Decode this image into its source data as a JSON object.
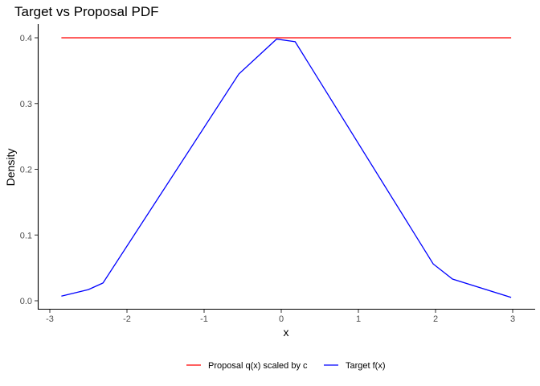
{
  "chart_data": {
    "type": "line",
    "title": "Target vs Proposal PDF",
    "xlabel": "x",
    "ylabel": "Density",
    "xlim": [
      -3.0,
      3.0
    ],
    "ylim": [
      0.0,
      0.4
    ],
    "x_ticks": [
      -3,
      -2,
      -1,
      0,
      1,
      2,
      3
    ],
    "y_ticks": [
      0.0,
      0.1,
      0.2,
      0.3,
      0.4
    ],
    "x_tick_labels": [
      "-3",
      "-2",
      "-1",
      "0",
      "1",
      "2",
      "3"
    ],
    "y_tick_labels": [
      "0.0",
      "0.1",
      "0.2",
      "0.3",
      "0.4"
    ],
    "grid": false,
    "legend_position": "bottom",
    "series": [
      {
        "name": "Proposal q(x) scaled by c",
        "color": "#ff0000",
        "x": [
          -2.85,
          2.98
        ],
        "y": [
          0.4,
          0.4
        ]
      },
      {
        "name": "Target f(x)",
        "color": "#0000ff",
        "x": [
          -2.85,
          -2.5,
          -2.31,
          -0.55,
          -0.06,
          0.18,
          1.97,
          2.22,
          2.98
        ],
        "y": [
          0.007,
          0.017,
          0.027,
          0.345,
          0.398,
          0.394,
          0.056,
          0.033,
          0.005
        ]
      }
    ]
  }
}
